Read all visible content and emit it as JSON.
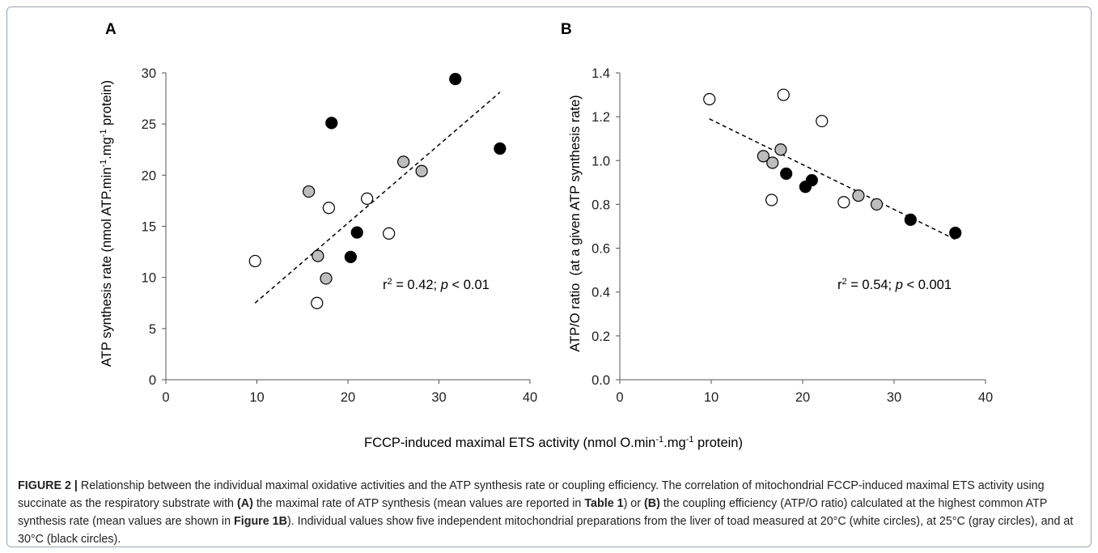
{
  "colors": {
    "white_circle": "#ffffff",
    "gray_circle": "#bdbdbd",
    "black_circle": "#000000",
    "stroke": "#000000"
  },
  "shared_xlabel": {
    "pre": "FCCP-induced maximal ETS activity (nmol O.min",
    "sup1": "-1",
    "mid": ".mg",
    "sup2": "-1",
    "post": " protein)"
  },
  "chart_data": [
    {
      "type": "scatter",
      "panel_label": "A",
      "ylabel": {
        "pre": "ATP synthesis rate (nmol ATP.min",
        "sup1": "-1",
        "mid": ".mg",
        "sup2": "-1",
        "post": " protein)"
      },
      "xlim": [
        0,
        40
      ],
      "ylim": [
        0,
        30
      ],
      "xticks": [
        "0",
        "10",
        "20",
        "30",
        "40"
      ],
      "yticks": [
        "0",
        "5",
        "10",
        "15",
        "20",
        "25",
        "30"
      ],
      "annotation": {
        "r": "r",
        "sup": "2",
        "eq": " = 0.42; ",
        "p": "p",
        "rest": " < 0.01"
      },
      "trend": {
        "x": [
          9.8,
          36.7
        ],
        "y": [
          7.5,
          28.1
        ]
      },
      "series": [
        {
          "group": "20°C",
          "fill": "white",
          "x": [
            9.8,
            16.6,
            17.9,
            22.1,
            24.5
          ],
          "y": [
            11.6,
            7.5,
            16.8,
            17.7,
            14.3
          ]
        },
        {
          "group": "25°C",
          "fill": "gray",
          "x": [
            15.7,
            16.7,
            17.6,
            26.1,
            28.1
          ],
          "y": [
            18.4,
            12.1,
            9.9,
            21.3,
            20.4
          ]
        },
        {
          "group": "30°C",
          "fill": "black",
          "x": [
            18.2,
            20.3,
            21.0,
            31.8,
            36.7
          ],
          "y": [
            25.1,
            12.0,
            14.4,
            29.4,
            22.6
          ]
        }
      ]
    },
    {
      "type": "scatter",
      "panel_label": "B",
      "ylabel": {
        "text": "ATP/O ratio  (at a given ATP synthesis rate)"
      },
      "xlim": [
        0,
        40
      ],
      "ylim": [
        0,
        1.4
      ],
      "xticks": [
        "0",
        "10",
        "20",
        "30",
        "40"
      ],
      "yticks": [
        "0.0",
        "0.2",
        "0.4",
        "0.6",
        "0.8",
        "1.0",
        "1.2",
        "1.4"
      ],
      "annotation": {
        "r": "r",
        "sup": "2",
        "eq": " = 0.54; ",
        "p": "p",
        "rest": " < 0.001"
      },
      "trend": {
        "x": [
          9.8,
          36.7
        ],
        "y": [
          1.19,
          0.64
        ]
      },
      "series": [
        {
          "group": "20°C",
          "fill": "white",
          "x": [
            9.8,
            16.6,
            17.9,
            22.1,
            24.5
          ],
          "y": [
            1.28,
            0.82,
            1.3,
            1.18,
            0.81
          ]
        },
        {
          "group": "25°C",
          "fill": "gray",
          "x": [
            15.7,
            16.7,
            17.6,
            26.1,
            28.1
          ],
          "y": [
            1.02,
            0.99,
            1.05,
            0.84,
            0.8
          ]
        },
        {
          "group": "30°C",
          "fill": "black",
          "x": [
            18.2,
            20.3,
            21.0,
            31.8,
            36.7
          ],
          "y": [
            0.94,
            0.88,
            0.91,
            0.73,
            0.67
          ]
        }
      ]
    }
  ],
  "caption": {
    "fig_label": "FIGURE 2 |",
    "t1": " Relationship between the individual maximal oxidative activities and the ATP synthesis rate or coupling efficiency. The correlation of mitochondrial FCCP-induced maximal ETS activity using succinate as the respiratory substrate with ",
    "b1": "(A)",
    "t2": " the maximal rate of ATP synthesis (mean values are reported in ",
    "b2": "Table 1",
    "t3": ") or ",
    "b3": "(B)",
    "t4": " the coupling efficiency (ATP/O ratio) calculated at the highest common ATP synthesis rate (mean values are shown in ",
    "b4": "Figure 1B",
    "t5": "). Individual values show five independent mitochondrial preparations from the liver of toad measured at 20°C (white circles), at 25°C (gray circles), and at 30°C (black circles)."
  }
}
